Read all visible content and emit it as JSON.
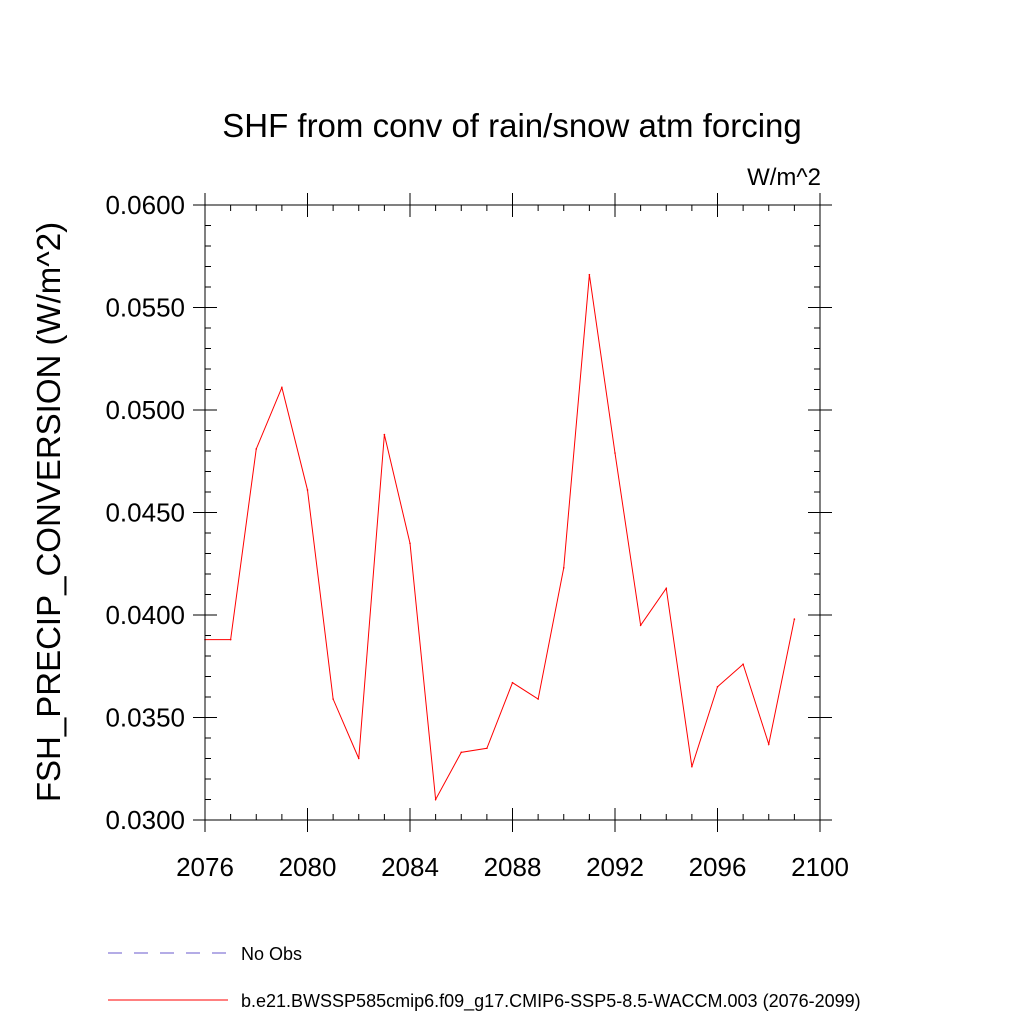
{
  "chart_data": {
    "type": "line",
    "title": "SHF from conv of rain/snow atm forcing",
    "units_label": "W/m^2",
    "ylabel": "FSH_PRECIP_CONVERSION  (W/m^2)",
    "xlabel": "",
    "xlim": [
      2076,
      2100
    ],
    "ylim": [
      0.03,
      0.06
    ],
    "x_ticks": [
      2076,
      2080,
      2084,
      2088,
      2092,
      2096,
      2100
    ],
    "x_tick_labels": [
      "2076",
      "2080",
      "2084",
      "2088",
      "2092",
      "2096",
      "2100"
    ],
    "y_ticks": [
      0.03,
      0.035,
      0.04,
      0.045,
      0.05,
      0.055,
      0.06
    ],
    "y_tick_labels": [
      "0.0300",
      "0.0350",
      "0.0400",
      "0.0450",
      "0.0500",
      "0.0550",
      "0.0600"
    ],
    "grid": false,
    "legend_position": "bottom",
    "series": [
      {
        "name": "b.e21.BWSSP585cmip6.f09_g17.CMIP6-SSP5-8.5-WACCM.003 (2076-2099)",
        "color": "#ff0000",
        "style": "solid",
        "x": [
          2076,
          2077,
          2078,
          2079,
          2080,
          2081,
          2082,
          2083,
          2084,
          2085,
          2086,
          2087,
          2088,
          2089,
          2090,
          2091,
          2092,
          2093,
          2094,
          2095,
          2096,
          2097,
          2098,
          2099
        ],
        "y": [
          0.0388,
          0.0388,
          0.0481,
          0.0511,
          0.0461,
          0.0359,
          0.033,
          0.0488,
          0.0435,
          0.031,
          0.0333,
          0.0335,
          0.0367,
          0.0359,
          0.0423,
          0.0566,
          0.0479,
          0.0395,
          0.0413,
          0.0326,
          0.0365,
          0.0376,
          0.0337,
          0.0398
        ]
      },
      {
        "name": "No Obs",
        "color": "#6a5acd",
        "style": "dashed",
        "x": [],
        "y": []
      }
    ]
  }
}
